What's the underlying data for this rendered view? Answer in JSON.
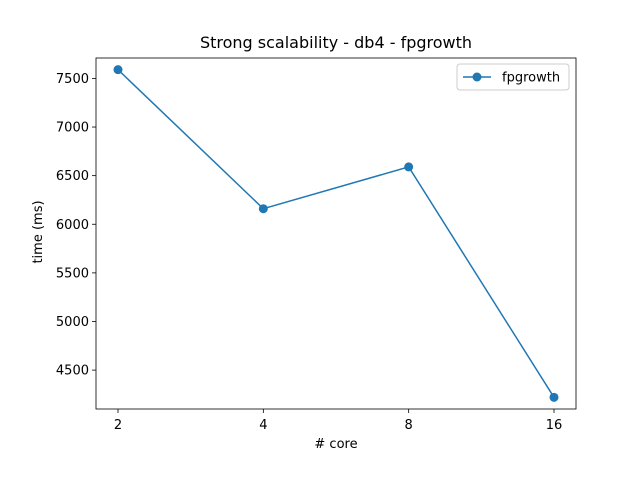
{
  "chart_data": {
    "type": "line",
    "title": "Strong scalability - db4 - fpgrowth",
    "xlabel": "# core",
    "ylabel": "time (ms)",
    "x_tick_labels": [
      "2",
      "4",
      "8",
      "16"
    ],
    "y_ticks": [
      4500,
      5000,
      5500,
      6000,
      6500,
      7000,
      7500
    ],
    "y_tick_labels": [
      "4500",
      "5000",
      "5500",
      "6000",
      "6500",
      "7000",
      "7500"
    ],
    "ylim": [
      4100,
      7710
    ],
    "grid": false,
    "legend_position": "upper right",
    "series": [
      {
        "name": "fpgrowth",
        "color": "#1f77b4",
        "marker": "circle",
        "values": [
          7590,
          6160,
          6590,
          4220
        ]
      }
    ]
  }
}
